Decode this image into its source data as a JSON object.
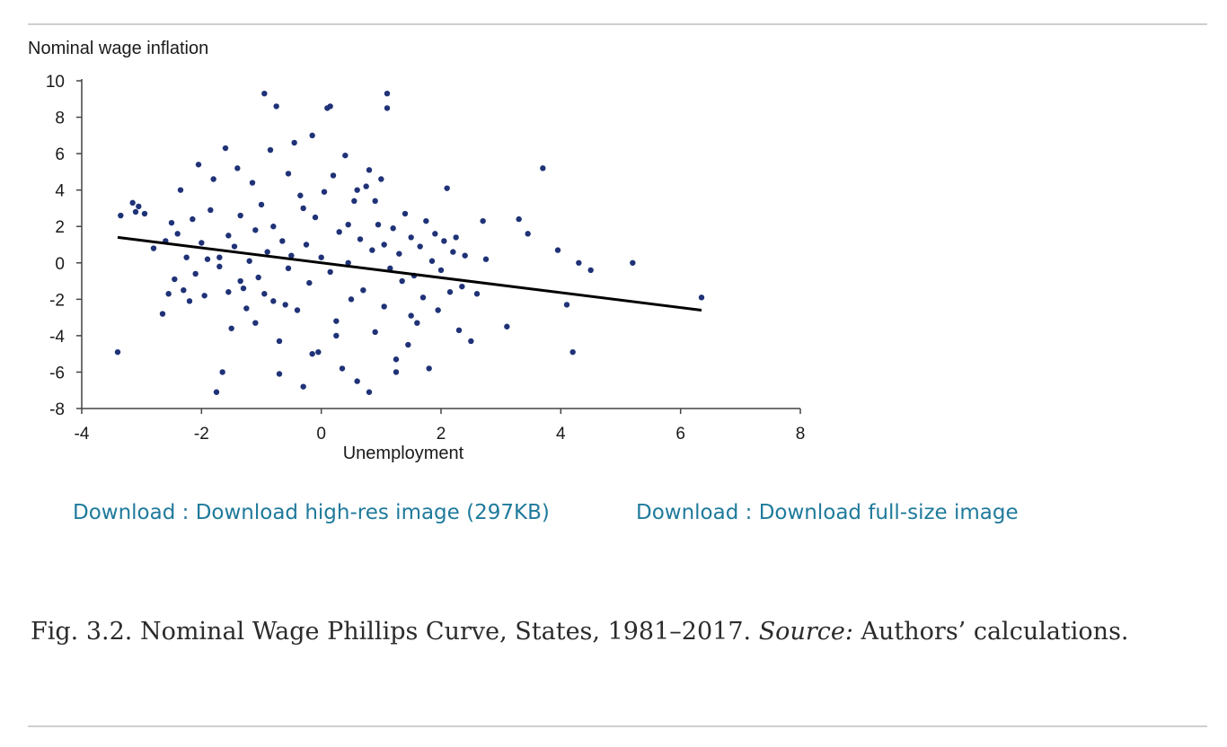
{
  "figure": {
    "downloads": {
      "high_res": "Download : Download high-res image (297KB)",
      "full_size": "Download : Download full-size image"
    },
    "caption": {
      "label": "Fig. 3.2.",
      "text": "Nominal Wage Phillips Curve, States, 1981–2017.",
      "source_label": "Source:",
      "source_text": "Authors’ calculations."
    }
  },
  "chart_data": {
    "type": "scatter",
    "title": "",
    "ylabel": "Nominal wage inflation",
    "xlabel": "Unemployment",
    "xlim": [
      -4,
      8
    ],
    "ylim": [
      -8,
      10
    ],
    "x_ticks": [
      -4,
      -2,
      0,
      2,
      4,
      6,
      8
    ],
    "y_ticks": [
      10,
      8,
      6,
      4,
      2,
      0,
      -2,
      -4,
      -6,
      -8
    ],
    "x_tick_labels": [
      "-4",
      "-2",
      "0",
      "2",
      "4",
      "6",
      "8"
    ],
    "y_tick_labels": [
      "10",
      "8",
      "6",
      "4",
      "2",
      "0",
      "-2",
      "-4",
      "-6",
      "-8"
    ],
    "grid": false,
    "point_color": "#1f3277",
    "fit_line_color": "#000000",
    "fit_line": {
      "x": [
        -3.4,
        6.35
      ],
      "y": [
        1.4,
        -2.6
      ]
    },
    "points": {
      "x": [
        -3.4,
        -3.35,
        -3.15,
        -3.1,
        -3.05,
        -2.95,
        -2.8,
        -2.65,
        -2.6,
        -2.55,
        -2.5,
        -2.45,
        -2.4,
        -2.35,
        -2.3,
        -2.25,
        -2.2,
        -2.15,
        -2.1,
        -2.05,
        -2.0,
        -1.95,
        -1.9,
        -1.85,
        -1.8,
        -1.75,
        -1.7,
        -1.65,
        -1.6,
        -1.55,
        -1.5,
        -1.45,
        -1.4,
        -1.35,
        -1.3,
        -1.25,
        -1.2,
        -1.15,
        -1.1,
        -1.05,
        -1.0,
        -0.95,
        -0.9,
        -0.85,
        -0.8,
        -0.75,
        -0.7,
        -0.65,
        -0.6,
        -0.55,
        -0.5,
        -0.45,
        -0.4,
        -0.35,
        -0.3,
        -0.25,
        -0.2,
        -0.15,
        -0.1,
        -0.05,
        0.0,
        0.05,
        0.1,
        0.15,
        0.2,
        0.25,
        0.3,
        0.35,
        0.4,
        0.45,
        0.5,
        0.55,
        0.6,
        0.65,
        0.7,
        0.75,
        0.8,
        0.85,
        0.9,
        0.95,
        1.0,
        1.05,
        1.1,
        1.15,
        1.2,
        1.25,
        1.3,
        1.35,
        1.4,
        1.45,
        1.5,
        1.55,
        1.6,
        1.65,
        1.7,
        1.75,
        1.8,
        1.85,
        1.9,
        1.95,
        2.0,
        2.05,
        2.1,
        2.15,
        2.2,
        2.25,
        2.3,
        2.35,
        2.4,
        2.5,
        2.6,
        2.7,
        2.75,
        3.1,
        3.3,
        3.45,
        3.7,
        3.95,
        4.1,
        4.2,
        4.3,
        4.5,
        5.2,
        6.35,
        -1.7,
        -1.55,
        -0.7,
        0.15,
        1.1,
        -0.95,
        -0.3,
        0.25,
        0.8,
        1.25,
        -1.35,
        -0.55,
        0.45,
        1.5,
        0.9,
        -0.15,
        0.6,
        -0.8,
        1.05,
        -1.1
      ],
      "y": [
        -4.9,
        2.6,
        3.3,
        2.8,
        3.1,
        2.7,
        0.8,
        -2.8,
        1.2,
        -1.7,
        2.2,
        -0.9,
        1.6,
        4.0,
        -1.5,
        0.3,
        -2.1,
        2.4,
        -0.6,
        5.4,
        1.1,
        -1.8,
        0.2,
        2.9,
        4.6,
        -7.1,
        -0.2,
        -6.0,
        6.3,
        1.5,
        -3.6,
        0.9,
        5.2,
        2.6,
        -1.4,
        -2.5,
        0.1,
        4.4,
        1.8,
        -0.8,
        3.2,
        -1.7,
        0.6,
        6.2,
        2.0,
        8.6,
        -4.3,
        1.2,
        -2.3,
        4.9,
        0.4,
        6.6,
        -2.6,
        3.7,
        -6.8,
        1.0,
        -1.1,
        7.0,
        2.5,
        -4.9,
        0.3,
        3.9,
        8.5,
        -0.5,
        4.8,
        -3.2,
        1.7,
        -5.8,
        5.9,
        0.0,
        -2.0,
        3.4,
        -6.5,
        1.3,
        -1.5,
        4.2,
        -7.1,
        0.7,
        -3.8,
        2.1,
        4.6,
        -2.4,
        9.3,
        -0.3,
        1.9,
        -5.3,
        0.5,
        -1.0,
        2.7,
        -4.5,
        1.4,
        -0.7,
        -3.3,
        0.9,
        -1.9,
        2.3,
        -5.8,
        0.1,
        1.6,
        -2.6,
        -0.4,
        1.2,
        4.1,
        -1.6,
        0.6,
        1.4,
        -3.7,
        -1.3,
        0.4,
        -4.3,
        -1.7,
        2.3,
        0.2,
        -3.5,
        2.4,
        1.6,
        5.2,
        0.7,
        -2.3,
        -4.9,
        0.0,
        -0.4,
        0.0,
        -1.9,
        0.3,
        -1.6,
        -6.1,
        8.6,
        8.5,
        9.3,
        3.0,
        -4.0,
        5.1,
        -6.0,
        -1.0,
        -0.3,
        2.1,
        -2.9,
        3.4,
        -5.0,
        4.0,
        -2.1,
        1.0,
        -3.3
      ]
    }
  }
}
